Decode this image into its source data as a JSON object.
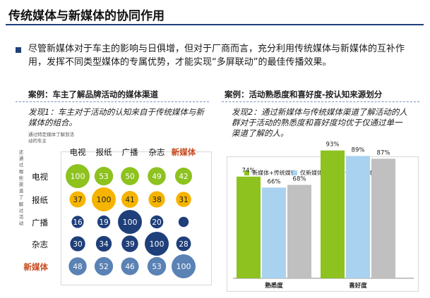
{
  "page": {
    "title": "传统媒体与新媒体的协同作用",
    "intro": "尽管新媒体对于车主的影响与日俱增，但对于厂商而言，充分利用传统媒体与新媒体的互补作用，发挥不同类型媒体的专属优势，才能实现“多屏联动”的最佳传播效果。"
  },
  "left": {
    "heading": "案例：车主了解品牌活动的媒体渠道",
    "finding": "发现1：车主对于活动的认知来自于传统媒体与新媒体的组合。",
    "note": "通过特定媒体了解到活动的车主",
    "vertical_note": "还通过哪些渠道了解过活动"
  },
  "right": {
    "heading": "案例：活动熟悉度和喜好度-按认知来源划分",
    "finding": "发现2：通过新媒体与传统媒体渠道了解活动的人群对于活动的熟悉度和喜好度均优于仅通过单一渠道了解的人。"
  },
  "colors": {
    "title_rule": "#1f3f7a",
    "accent_text": "#c8481c",
    "green": "#8dc21f",
    "yellow": "#f5b400",
    "navy": "#1f3f7a",
    "steel": "#5a82b4",
    "light_blue": "#a9d2f0",
    "gray": "#c0c0c0"
  },
  "chart_data": [
    {
      "type": "heatmap",
      "columns": [
        "电视",
        "报纸",
        "广播",
        "杂志",
        "新媒体"
      ],
      "rows": [
        "电视",
        "报纸",
        "广播",
        "杂志",
        "新媒体"
      ],
      "highlight_label": "新媒体",
      "values": [
        [
          100,
          53,
          50,
          49,
          42
        ],
        [
          37,
          100,
          41,
          38,
          31
        ],
        [
          16,
          19,
          100,
          20,
          9
        ],
        [
          30,
          34,
          39,
          100,
          28
        ],
        [
          48,
          52,
          46,
          53,
          100
        ]
      ],
      "row_colors": [
        "green",
        "yellow",
        "navy",
        "navy",
        "steel"
      ],
      "hidden_labels": [
        [
          2,
          4
        ]
      ]
    },
    {
      "type": "bar",
      "categories": [
        "熟悉度",
        "喜好度"
      ],
      "series": [
        {
          "name": "新媒体+传统媒体",
          "values": [
            74,
            93
          ],
          "color": "green"
        },
        {
          "name": "仅新媒体",
          "values": [
            66,
            89
          ],
          "color": "light_blue"
        },
        {
          "name": "仅传统媒体",
          "values": [
            68,
            87
          ],
          "color": "gray"
        }
      ],
      "value_suffix": "%",
      "ylim": [
        0,
        100
      ]
    }
  ]
}
